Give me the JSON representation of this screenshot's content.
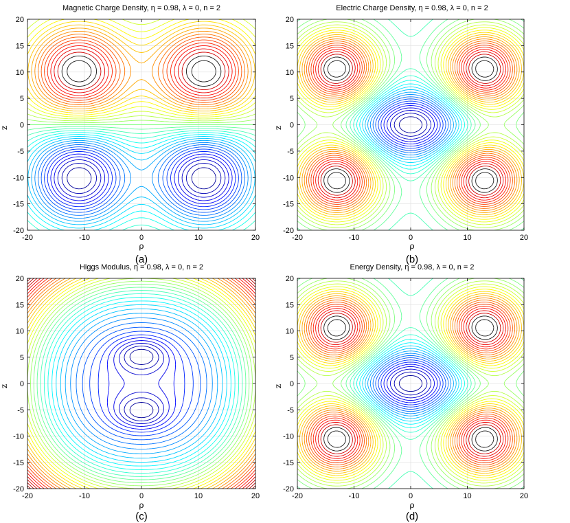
{
  "chart_data": [
    {
      "type": "contour",
      "id": "a",
      "title": "Magnetic Charge Density, η = 0.98, λ = 0, n = 2",
      "caption": "(a)",
      "xlabel": "ρ",
      "ylabel": "z",
      "xlim": [
        -20,
        20
      ],
      "ylim": [
        -20,
        20
      ],
      "xticks": [
        -20,
        -10,
        0,
        10,
        20
      ],
      "yticks": [
        -20,
        -15,
        -10,
        -5,
        0,
        5,
        10,
        15,
        20
      ],
      "grid": true,
      "sources": [
        {
          "x": -11,
          "y": 10,
          "sign": 1
        },
        {
          "x": 11,
          "y": 10,
          "sign": 1
        },
        {
          "x": -11,
          "y": -10,
          "sign": -1
        },
        {
          "x": 11,
          "y": -10,
          "sign": -1
        }
      ]
    },
    {
      "type": "contour",
      "id": "b",
      "title": "Electric Charge Density, η = 0.98, λ = 0, n = 2",
      "caption": "(b)",
      "xlabel": "ρ",
      "ylabel": "z",
      "xlim": [
        -20,
        20
      ],
      "ylim": [
        -20,
        20
      ],
      "xticks": [
        -20,
        -10,
        0,
        10,
        20
      ],
      "yticks": [
        -20,
        -15,
        -10,
        -5,
        0,
        5,
        10,
        15,
        20
      ],
      "grid": true,
      "sources": [
        {
          "x": -13,
          "y": 10.5,
          "sign": 1
        },
        {
          "x": 13,
          "y": 10.5,
          "sign": 1
        },
        {
          "x": -13,
          "y": -10.5,
          "sign": 1
        },
        {
          "x": 13,
          "y": -10.5,
          "sign": 1
        },
        {
          "x": 0,
          "y": 0,
          "sign": -1
        }
      ]
    },
    {
      "type": "contour",
      "id": "c",
      "title": "Higgs Modulus, η = 0.98, λ = 0, n = 2",
      "caption": "(c)",
      "xlabel": "ρ",
      "ylabel": "z",
      "xlim": [
        -20,
        20
      ],
      "ylim": [
        -20,
        20
      ],
      "xticks": [
        -20,
        -10,
        0,
        10,
        20
      ],
      "yticks": [
        -20,
        -15,
        -10,
        -5,
        0,
        5,
        10,
        15,
        20
      ],
      "grid": true,
      "minima": [
        {
          "x": 0,
          "y": 5.5
        },
        {
          "x": 0,
          "y": -5.5
        }
      ]
    },
    {
      "type": "contour",
      "id": "d",
      "title": "Energy Density, η = 0.98, λ = 0, n = 2",
      "caption": "(d)",
      "xlabel": "ρ",
      "ylabel": "z",
      "xlim": [
        -20,
        20
      ],
      "ylim": [
        -20,
        20
      ],
      "xticks": [
        -20,
        -10,
        0,
        10,
        20
      ],
      "yticks": [
        -20,
        -15,
        -10,
        -5,
        0,
        5,
        10,
        15,
        20
      ],
      "grid": true,
      "sources": [
        {
          "x": -13,
          "y": 10.5,
          "sign": 1
        },
        {
          "x": 13,
          "y": 10.5,
          "sign": 1
        },
        {
          "x": -13,
          "y": -10.5,
          "sign": 1
        },
        {
          "x": 13,
          "y": -10.5,
          "sign": 1
        },
        {
          "x": 0,
          "y": 0,
          "sign": -1
        }
      ]
    }
  ]
}
